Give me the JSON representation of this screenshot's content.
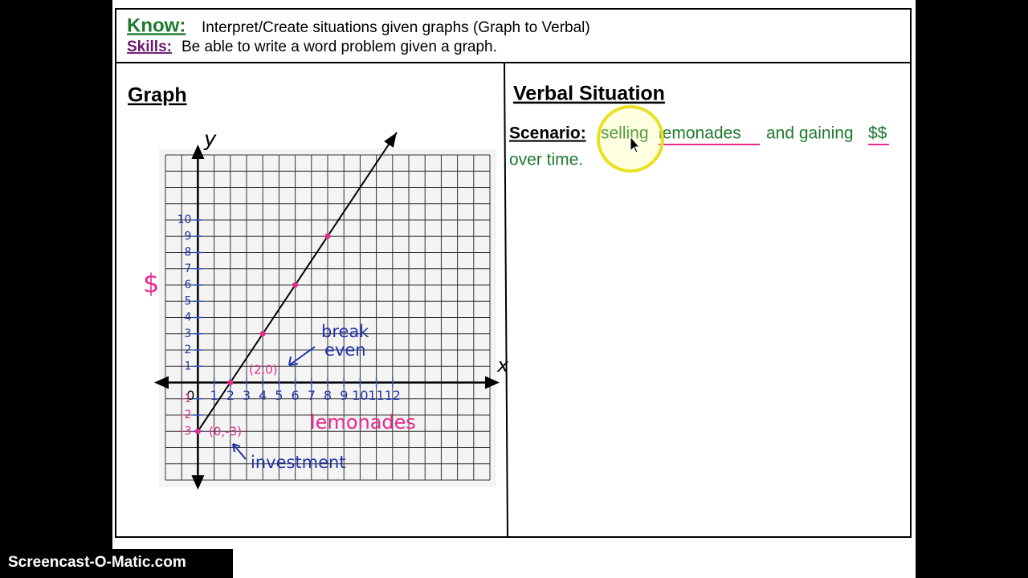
{
  "header": {
    "know_label": "Know:",
    "know_text": "Interpret/Create situations given graphs (Graph to Verbal)",
    "skills_label": "Skills:",
    "skills_text": "Be able to write a word problem given a graph."
  },
  "graph": {
    "title": "Graph",
    "x_axis_label": "x",
    "y_axis_label": "y",
    "x_title": "lemonades",
    "y_title": "$",
    "xlim": [
      -2,
      18
    ],
    "ylim": [
      -6,
      14
    ],
    "xticks": [
      0,
      1,
      2,
      3,
      4,
      5,
      6,
      7,
      8,
      9,
      10,
      11,
      12
    ],
    "yticks": [
      -3,
      -2,
      -1,
      1,
      2,
      3,
      4,
      5,
      6,
      7,
      8,
      9,
      10
    ],
    "points": [
      {
        "x": 0,
        "y": -3
      },
      {
        "x": 2,
        "y": 0
      },
      {
        "x": 4,
        "y": 3
      },
      {
        "x": 6,
        "y": 6
      },
      {
        "x": 8,
        "y": 9
      }
    ],
    "point_labels": [
      "(0,-3)",
      "(2,0)"
    ],
    "annotations": {
      "break_even": [
        "break",
        "even"
      ],
      "investment": "investment"
    }
  },
  "verbal": {
    "title": "Verbal Situation",
    "scenario_label": "Scenario:",
    "scenario_parts": [
      "selling",
      "lemonades",
      "and gaining",
      "$$"
    ],
    "scenario_line2": "over time."
  },
  "watermark": "Screencast-O-Matic.com"
}
